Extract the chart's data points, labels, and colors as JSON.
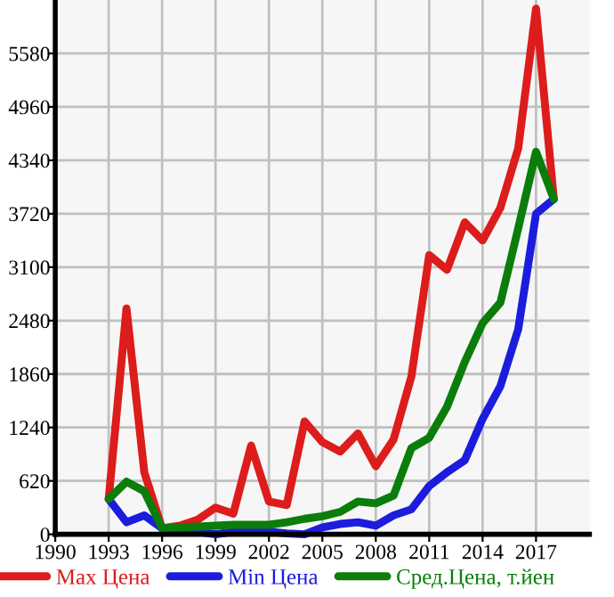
{
  "chart_data": {
    "type": "line",
    "x": [
      1993,
      1994,
      1995,
      1996,
      1997,
      1998,
      1999,
      2000,
      2001,
      2002,
      2003,
      2004,
      2005,
      2006,
      2007,
      2008,
      2009,
      2010,
      2011,
      2012,
      2013,
      2014,
      2015,
      2016,
      2017,
      2018
    ],
    "series": [
      {
        "name": "Max Цена",
        "color": "#dd1c1c",
        "values": [
          410,
          2620,
          720,
          70,
          100,
          170,
          310,
          240,
          1030,
          380,
          340,
          1310,
          1070,
          960,
          1170,
          790,
          1100,
          1830,
          3240,
          3070,
          3620,
          3410,
          3790,
          4480,
          6100,
          3890
        ]
      },
      {
        "name": "Min Цена",
        "color": "#1c1cdd",
        "values": [
          410,
          140,
          220,
          70,
          70,
          30,
          0,
          30,
          30,
          30,
          10,
          0,
          80,
          120,
          140,
          100,
          220,
          290,
          560,
          720,
          860,
          1340,
          1720,
          2380,
          3720,
          3890
        ]
      },
      {
        "name": "Сред.Цена, т.йен",
        "color": "#0a7d0a",
        "values": [
          410,
          610,
          500,
          70,
          80,
          90,
          100,
          110,
          110,
          110,
          140,
          180,
          210,
          260,
          380,
          360,
          450,
          1000,
          1120,
          1480,
          2000,
          2450,
          2690,
          3550,
          4440,
          3890
        ]
      }
    ],
    "xlim": [
      1990,
      2020
    ],
    "xticks": [
      1990,
      1993,
      1996,
      1999,
      2002,
      2005,
      2008,
      2011,
      2014,
      2017
    ],
    "ylim": [
      0,
      6200
    ],
    "yticks": [
      0,
      620,
      1240,
      1860,
      2480,
      3100,
      3720,
      4340,
      4960,
      5580
    ],
    "grid": true,
    "legend": "bottom",
    "marker": "none",
    "line_style": "solid"
  }
}
